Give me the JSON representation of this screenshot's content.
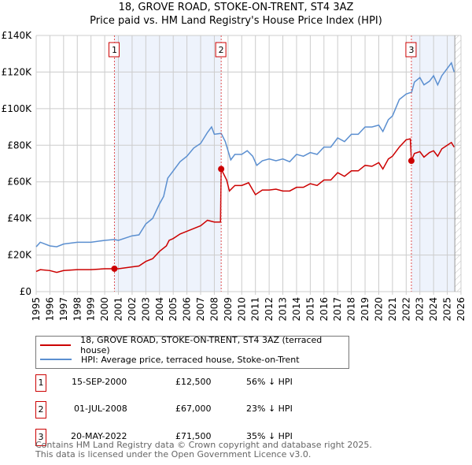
{
  "chart_data": {
    "type": "line",
    "title": "18, GROVE ROAD, STOKE-ON-TRENT, ST4 3AZ",
    "subtitle": "Price paid vs. HM Land Registry's House Price Index (HPI)",
    "xlim": [
      1995,
      2026
    ],
    "ylim": [
      0,
      140000
    ],
    "x_ticks": [
      "1995",
      "1996",
      "1997",
      "1998",
      "1999",
      "2000",
      "2001",
      "2002",
      "2003",
      "2004",
      "2005",
      "2006",
      "2007",
      "2008",
      "2009",
      "2010",
      "2011",
      "2012",
      "2013",
      "2014",
      "2015",
      "2016",
      "2017",
      "2018",
      "2019",
      "2020",
      "2021",
      "2022",
      "2023",
      "2024",
      "2025",
      "2026"
    ],
    "y_ticks": [
      {
        "v": 0,
        "label": "£0"
      },
      {
        "v": 20000,
        "label": "£20K"
      },
      {
        "v": 40000,
        "label": "£40K"
      },
      {
        "v": 60000,
        "label": "£60K"
      },
      {
        "v": 80000,
        "label": "£80K"
      },
      {
        "v": 100000,
        "label": "£100K"
      },
      {
        "v": 120000,
        "label": "£120K"
      },
      {
        "v": 140000,
        "label": "£140K"
      }
    ],
    "grid": true,
    "series": [
      {
        "name": "18, GROVE ROAD, STOKE-ON-TRENT, ST4 3AZ (terraced house)",
        "color": "#cc0000",
        "x": [
          1995,
          1995.3,
          1996,
          1996.5,
          1997,
          1998,
          1999,
          2000,
          2000.71,
          2001,
          2002,
          2002.5,
          2003,
          2003.5,
          2004,
          2004.5,
          2004.7,
          2005,
          2005.5,
          2006,
          2006.5,
          2007,
          2007.5,
          2008,
          2008.45,
          2008.5,
          2008.9,
          2009.1,
          2009.5,
          2010,
          2010.5,
          2011,
          2011.5,
          2012,
          2012.5,
          2013,
          2013.5,
          2014,
          2014.5,
          2015,
          2015.5,
          2016,
          2016.5,
          2017,
          2017.5,
          2018,
          2018.5,
          2019,
          2019.5,
          2020,
          2020.3,
          2020.7,
          2021,
          2021.5,
          2022,
          2022.3,
          2022.38,
          2022.6,
          2023,
          2023.3,
          2023.7,
          2024,
          2024.3,
          2024.6,
          2025,
          2025.3,
          2025.5
        ],
        "y": [
          11000,
          12000,
          11500,
          10500,
          11500,
          12000,
          12000,
          12500,
          12500,
          12500,
          13500,
          14000,
          16500,
          18000,
          22000,
          25000,
          28000,
          29000,
          31500,
          33000,
          34500,
          36000,
          39000,
          38000,
          38000,
          67000,
          61000,
          55000,
          58000,
          58000,
          59500,
          53000,
          55500,
          55500,
          56000,
          55000,
          55000,
          57000,
          57000,
          59000,
          58000,
          61000,
          61000,
          65000,
          63000,
          66000,
          66000,
          69000,
          68500,
          70500,
          67000,
          72500,
          74000,
          79000,
          83000,
          83500,
          71500,
          75500,
          76500,
          73500,
          76000,
          77000,
          74000,
          78000,
          80000,
          81500,
          79000
        ]
      },
      {
        "name": "HPI: Average price, terraced house, Stoke-on-Trent",
        "color": "#5b8fd0",
        "x": [
          1995,
          1995.3,
          1996,
          1996.5,
          1997,
          1998,
          1999,
          2000,
          2000.7,
          2001,
          2002,
          2002.5,
          2003,
          2003.5,
          2004,
          2004.3,
          2004.6,
          2005,
          2005.5,
          2006,
          2006.5,
          2007,
          2007.5,
          2007.8,
          2008,
          2008.5,
          2008.8,
          2009.2,
          2009.5,
          2010,
          2010.4,
          2010.8,
          2011.1,
          2011.5,
          2012,
          2012.5,
          2013,
          2013.5,
          2014,
          2014.5,
          2015,
          2015.5,
          2016,
          2016.5,
          2017,
          2017.5,
          2018,
          2018.5,
          2019,
          2019.5,
          2020,
          2020.3,
          2020.7,
          2021,
          2021.5,
          2022,
          2022.4,
          2022.6,
          2023,
          2023.3,
          2023.7,
          2024,
          2024.3,
          2024.6,
          2025,
          2025.3,
          2025.5
        ],
        "y": [
          24500,
          27000,
          25000,
          24500,
          26000,
          27000,
          27000,
          28000,
          28500,
          28000,
          30500,
          31000,
          37000,
          40000,
          48000,
          52000,
          62000,
          66000,
          71000,
          74000,
          78500,
          81000,
          87000,
          90000,
          86000,
          86500,
          82000,
          72000,
          75000,
          75000,
          77000,
          74000,
          69000,
          71500,
          72500,
          71500,
          72500,
          71000,
          75000,
          74000,
          76000,
          75000,
          79000,
          79000,
          84000,
          82000,
          86000,
          86000,
          90000,
          90000,
          91000,
          87500,
          94000,
          96000,
          105000,
          108000,
          109000,
          114500,
          117000,
          113000,
          115000,
          118000,
          113000,
          118000,
          122000,
          125000,
          120000
        ]
      }
    ],
    "sales": [
      {
        "num": "1",
        "x": 2000.71,
        "y": 12500,
        "date": "15-SEP-2000",
        "price": "£12,500",
        "hpi": "56% ↓ HPI"
      },
      {
        "num": "2",
        "x": 2008.5,
        "y": 67000,
        "date": "01-JUL-2008",
        "price": "£67,000",
        "hpi": "23% ↓ HPI"
      },
      {
        "num": "3",
        "x": 2022.38,
        "y": 71500,
        "date": "20-MAY-2022",
        "price": "£71,500",
        "hpi": "35% ↓ HPI"
      }
    ],
    "data_end": 2025.55
  },
  "legend": {
    "property": "18, GROVE ROAD, STOKE-ON-TRENT, ST4 3AZ (terraced house)",
    "hpi": "HPI: Average price, terraced house, Stoke-on-Trent"
  },
  "footer": {
    "line1": "Contains HM Land Registry data © Crown copyright and database right 2025.",
    "line2": "This data is licensed under the Open Government Licence v3.0."
  }
}
